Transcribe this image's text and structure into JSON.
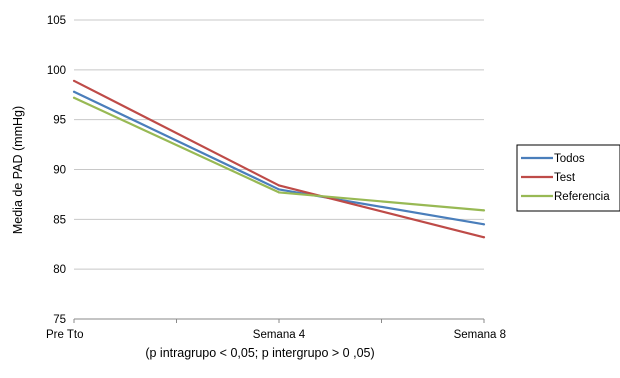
{
  "chart_data": {
    "type": "line",
    "categories": [
      "Pre Tto",
      "Semana 4",
      "Semana 8"
    ],
    "series": [
      {
        "name": "Todos",
        "color": "#4a7ebb",
        "values": [
          97.8,
          88.0,
          84.5
        ]
      },
      {
        "name": "Test",
        "color": "#be4b48",
        "values": [
          98.9,
          88.4,
          83.2
        ]
      },
      {
        "name": "Referencia",
        "color": "#98b954",
        "values": [
          97.2,
          87.7,
          85.9
        ]
      }
    ],
    "ylabel": "Media de PAD (mmHg)",
    "xlabel": "",
    "ylim": [
      75,
      105
    ],
    "yticks": [
      75,
      80,
      85,
      90,
      95,
      100,
      105
    ],
    "grid": true,
    "legend_position": "right"
  },
  "caption": "(p intragrupo < 0,05; p intergrupo > 0 ,05)"
}
